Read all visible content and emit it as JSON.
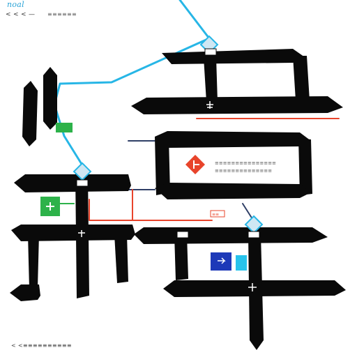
{
  "header": {
    "logo_text": "noal",
    "toolbar_glyphs": "< < < —",
    "toolbar_caption": "≡≡≡≡≡≡"
  },
  "footer": {
    "status_text": "< <≡≡≡≡≡≡≡≡≡≡"
  },
  "callout": {
    "line1": "≡≡≡≡≡≡≡≡≡≡≡≡≡≡≡",
    "line2": "≡≡≡≡≡≡≡≡≡≡≡≡≡≡"
  },
  "tags": {
    "mid_tag": "≡≡"
  },
  "colors": {
    "stroke": "#0a0a0a",
    "connector_blue": "#27b6e6",
    "connector_red": "#e8442b",
    "connector_navy": "#2f3f66",
    "marker_green": "#2db24a",
    "marker_red": "#e8442b",
    "marker_navy": "#1d39b8",
    "marker_cyan": "#27c3ec",
    "node_fill": "#cfe7f3"
  },
  "icons": [
    "plane-icon",
    "flag-icon",
    "person-icon",
    "arrow-icon"
  ]
}
